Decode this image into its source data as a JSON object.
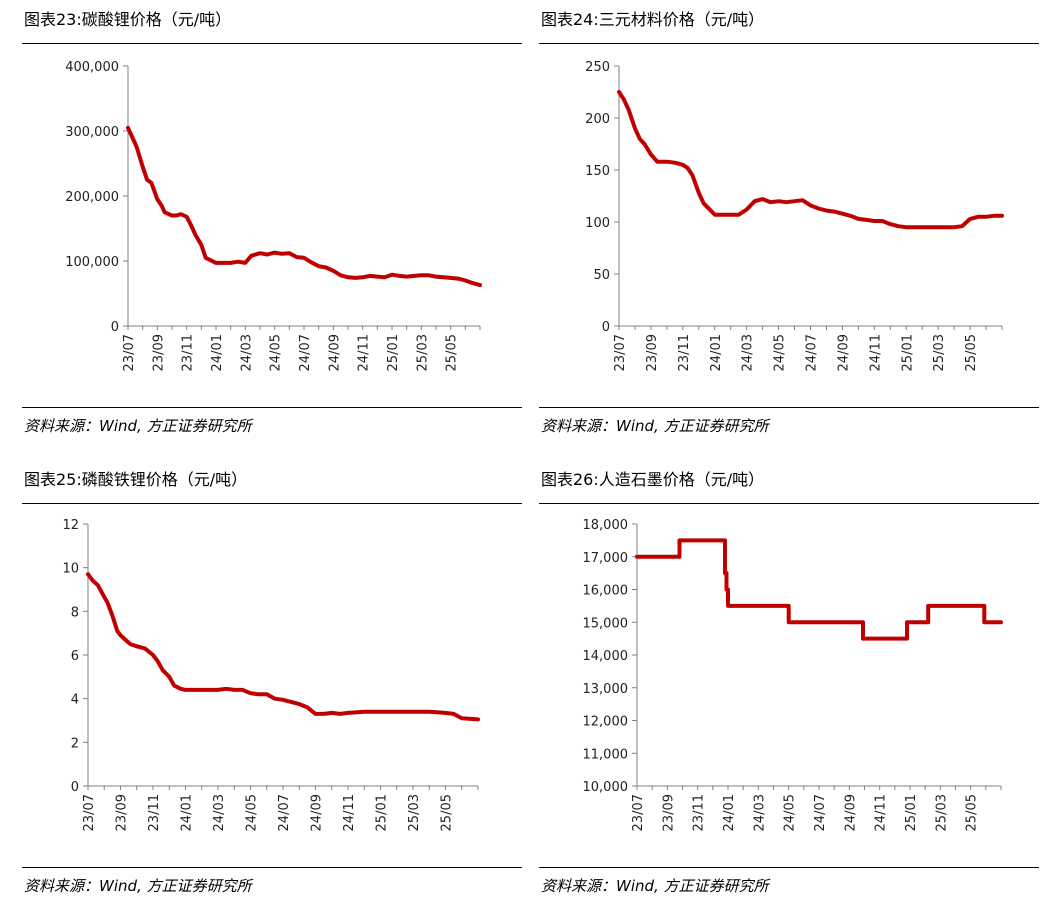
{
  "panels": [
    {
      "title": "图表23:碳酸锂价格（元/吨）",
      "source": "资料来源：Wind, 方正证券研究所"
    },
    {
      "title": "图表24:三元材料价格（元/吨）",
      "source": "资料来源：Wind, 方正证券研究所"
    },
    {
      "title": "图表25:磷酸铁锂价格（元/吨）",
      "source": "资料来源：Wind, 方正证券研究所"
    },
    {
      "title": "图表26:人造石墨价格（元/吨）",
      "source": "资料来源：Wind, 方正证券研究所"
    }
  ],
  "chart_data": [
    {
      "type": "line",
      "title": "图表23:碳酸锂价格（元/吨）",
      "color": "#C00000",
      "ylim": [
        0,
        400000
      ],
      "yticks": [
        0,
        100000,
        200000,
        300000,
        400000
      ],
      "ytick_labels": [
        "0",
        "100,000",
        "200,000",
        "300,000",
        "400,000"
      ],
      "xlim": [
        0,
        24
      ],
      "xticks": [
        0,
        2,
        4,
        6,
        8,
        10,
        12,
        14,
        16,
        18,
        20,
        22
      ],
      "xtick_labels": [
        "23/07",
        "23/09",
        "23/11",
        "24/01",
        "24/03",
        "24/05",
        "24/07",
        "24/09",
        "24/11",
        "25/01",
        "25/03",
        "25/05"
      ],
      "series": [
        {
          "x": [
            0,
            0.3,
            0.6,
            1.0,
            1.3,
            1.6,
            2.0,
            2.3,
            2.5,
            3.0,
            3.3,
            3.6,
            4.0,
            4.3,
            4.6,
            5.0,
            5.3,
            6.0,
            6.5,
            7.0,
            7.5,
            8.0,
            8.4,
            9.0,
            9.5,
            10.0,
            10.5,
            11.0,
            11.5,
            12.0,
            12.5,
            13.0,
            13.5,
            14.0,
            14.5,
            15.0,
            15.5,
            16.0,
            16.5,
            17.0,
            17.5,
            18.0,
            18.5,
            19.0,
            19.5,
            20.0,
            20.5,
            21.0,
            21.5,
            22.0,
            22.5,
            23.0,
            23.5,
            24.0
          ],
          "y": [
            305000,
            290000,
            275000,
            245000,
            225000,
            220000,
            195000,
            185000,
            175000,
            170000,
            170000,
            172000,
            168000,
            155000,
            140000,
            125000,
            105000,
            97000,
            97000,
            97000,
            99000,
            97000,
            108000,
            112000,
            110000,
            113000,
            111000,
            112000,
            106000,
            105000,
            98000,
            92000,
            90000,
            85000,
            78000,
            75000,
            74000,
            75000,
            77000,
            76000,
            75000,
            79000,
            77000,
            76000,
            77000,
            78000,
            78000,
            76000,
            75000,
            74000,
            73000,
            70000,
            66000,
            63000
          ]
        }
      ]
    },
    {
      "type": "line",
      "title": "图表24:三元材料价格（元/吨）",
      "color": "#C00000",
      "ylim": [
        0,
        250
      ],
      "yticks": [
        0,
        50,
        100,
        150,
        200,
        250
      ],
      "ytick_labels": [
        "0",
        "50",
        "100",
        "150",
        "200",
        "250"
      ],
      "xlim": [
        0,
        24
      ],
      "xticks": [
        0,
        2,
        4,
        6,
        8,
        10,
        12,
        14,
        16,
        18,
        20,
        22
      ],
      "xtick_labels": [
        "23/07",
        "23/09",
        "23/11",
        "24/01",
        "24/03",
        "24/05",
        "24/07",
        "24/09",
        "24/11",
        "25/01",
        "25/03",
        "25/05"
      ],
      "series": [
        {
          "x": [
            0,
            0.3,
            0.6,
            1.0,
            1.3,
            1.6,
            2.0,
            2.4,
            2.8,
            3.0,
            3.5,
            4.0,
            4.3,
            4.6,
            5.0,
            5.3,
            6.0,
            7.0,
            7.5,
            8.0,
            8.5,
            9.0,
            9.5,
            10.0,
            10.5,
            11.0,
            11.5,
            12.0,
            12.5,
            13.0,
            13.5,
            14.0,
            14.5,
            15.0,
            15.5,
            16.0,
            16.5,
            17.0,
            17.5,
            18.0,
            18.5,
            19.0,
            19.5,
            20.0,
            20.5,
            21.0,
            21.5,
            22.0,
            22.5,
            23.0,
            23.5,
            24.0
          ],
          "y": [
            225,
            218,
            208,
            190,
            180,
            175,
            165,
            158,
            158,
            158,
            157,
            155,
            152,
            145,
            128,
            118,
            107,
            107,
            107,
            112,
            120,
            122,
            119,
            120,
            119,
            120,
            121,
            116,
            113,
            111,
            110,
            108,
            106,
            103,
            102,
            101,
            101,
            98,
            96,
            95,
            95,
            95,
            95,
            95,
            95,
            95,
            96,
            103,
            105,
            105,
            106,
            106
          ]
        }
      ]
    },
    {
      "type": "line",
      "title": "图表25:磷酸铁锂价格（元/吨）",
      "color": "#C00000",
      "ylim": [
        0,
        12
      ],
      "yticks": [
        0,
        2,
        4,
        6,
        8,
        10,
        12
      ],
      "ytick_labels": [
        "0",
        "2",
        "4",
        "6",
        "8",
        "10",
        "12"
      ],
      "xlim": [
        0,
        24
      ],
      "xticks": [
        0,
        2,
        4,
        6,
        8,
        10,
        12,
        14,
        16,
        18,
        20,
        22
      ],
      "xtick_labels": [
        "23/07",
        "23/09",
        "23/11",
        "24/01",
        "24/03",
        "24/05",
        "24/07",
        "24/09",
        "24/11",
        "25/01",
        "25/03",
        "25/05"
      ],
      "series": [
        {
          "x": [
            0,
            0.3,
            0.6,
            0.9,
            1.2,
            1.5,
            1.8,
            2.0,
            2.3,
            2.6,
            3.0,
            3.5,
            4.0,
            4.3,
            4.6,
            5.0,
            5.3,
            5.7,
            6.0,
            6.5,
            7.0,
            7.5,
            8.0,
            8.5,
            9.0,
            9.5,
            10.0,
            10.5,
            11.0,
            11.5,
            12.0,
            12.5,
            13.0,
            13.5,
            14.0,
            14.5,
            15.0,
            15.5,
            16.0,
            17.0,
            18.0,
            19.0,
            20.0,
            21.0,
            22.0,
            22.5,
            23.0,
            24.0
          ],
          "y": [
            9.7,
            9.4,
            9.2,
            8.8,
            8.4,
            7.8,
            7.1,
            6.9,
            6.7,
            6.5,
            6.4,
            6.3,
            6.0,
            5.7,
            5.3,
            5.0,
            4.6,
            4.45,
            4.4,
            4.4,
            4.4,
            4.4,
            4.4,
            4.45,
            4.4,
            4.4,
            4.25,
            4.2,
            4.2,
            4.0,
            3.95,
            3.85,
            3.75,
            3.6,
            3.3,
            3.3,
            3.35,
            3.3,
            3.35,
            3.4,
            3.4,
            3.4,
            3.4,
            3.4,
            3.35,
            3.3,
            3.1,
            3.05
          ]
        }
      ]
    },
    {
      "type": "line",
      "title": "图表26:人造石墨价格（元/吨）",
      "color": "#C00000",
      "ylim": [
        10000,
        18000
      ],
      "yticks": [
        10000,
        11000,
        12000,
        13000,
        14000,
        15000,
        16000,
        17000,
        18000
      ],
      "ytick_labels": [
        "10,000",
        "11,000",
        "12,000",
        "13,000",
        "14,000",
        "15,000",
        "16,000",
        "17,000",
        "18,000"
      ],
      "xlim": [
        0,
        24
      ],
      "xticks": [
        0,
        2,
        4,
        6,
        8,
        10,
        12,
        14,
        16,
        18,
        20,
        22
      ],
      "xtick_labels": [
        "23/07",
        "23/09",
        "23/11",
        "24/01",
        "24/03",
        "24/05",
        "24/07",
        "24/09",
        "24/11",
        "25/01",
        "25/03",
        "25/05"
      ],
      "series": [
        {
          "x": [
            0,
            2.8,
            2.8,
            5.8,
            5.8,
            5.9,
            5.9,
            6.0,
            6.0,
            10.0,
            10.0,
            14.9,
            14.9,
            17.8,
            17.8,
            19.2,
            19.2,
            22.9,
            22.9,
            24.0
          ],
          "y": [
            17000,
            17000,
            17500,
            17500,
            16500,
            16500,
            16000,
            16000,
            15500,
            15500,
            15000,
            15000,
            14500,
            14500,
            15000,
            15000,
            15500,
            15500,
            15000,
            15000
          ]
        }
      ]
    }
  ]
}
